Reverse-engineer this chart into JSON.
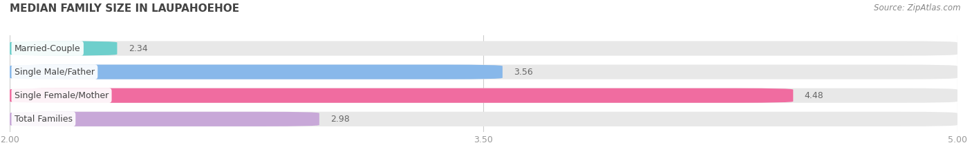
{
  "title": "MEDIAN FAMILY SIZE IN LAUPAHOEHOE",
  "source": "Source: ZipAtlas.com",
  "categories": [
    "Married-Couple",
    "Single Male/Father",
    "Single Female/Mother",
    "Total Families"
  ],
  "values": [
    2.34,
    3.56,
    4.48,
    2.98
  ],
  "colors": [
    "#6ecfcc",
    "#88b8ea",
    "#f06ca0",
    "#c8a8d8"
  ],
  "xlim_data": [
    2.0,
    5.0
  ],
  "xticks_data": [
    2.0,
    3.5,
    5.0
  ],
  "xtick_labels": [
    "2.00",
    "3.50",
    "5.00"
  ],
  "bar_height": 0.62,
  "background_color": "#ffffff",
  "bar_bg_color": "#e8e8e8",
  "title_fontsize": 11,
  "label_fontsize": 9,
  "value_fontsize": 9,
  "source_fontsize": 8.5
}
